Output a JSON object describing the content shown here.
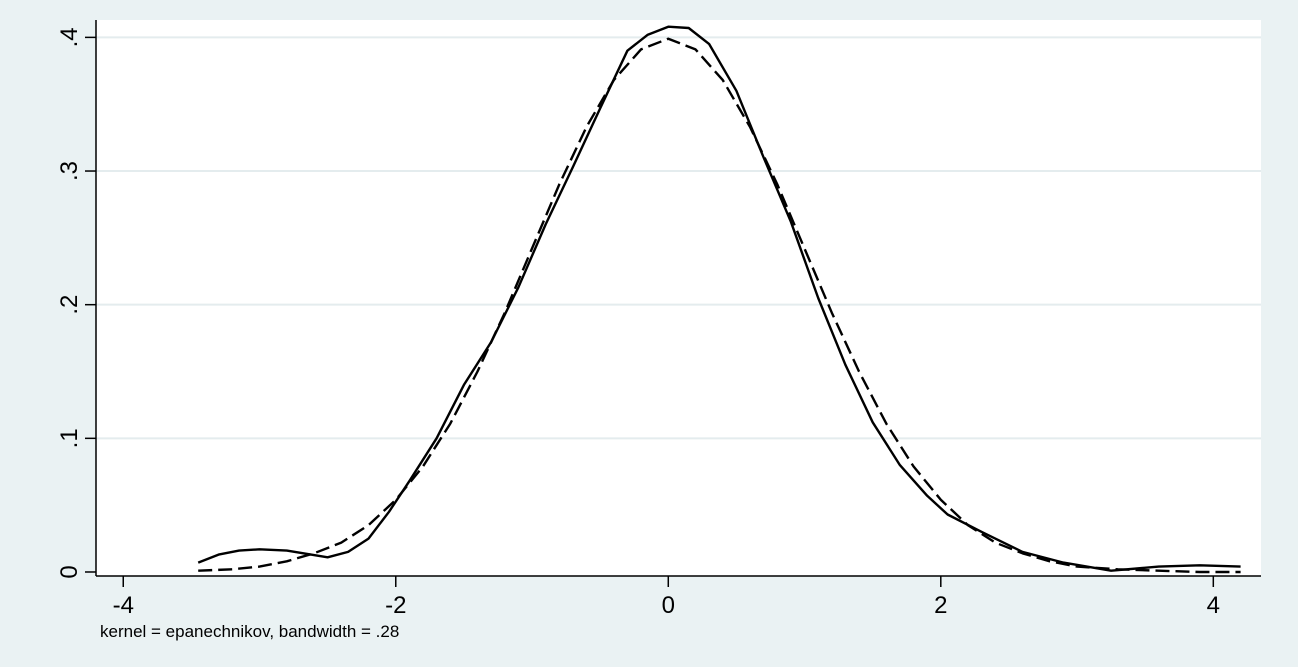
{
  "chart_data": {
    "type": "line",
    "title": "",
    "xlabel": "",
    "ylabel": "",
    "note": "kernel = epanechnikov, bandwidth = .28",
    "xlim": [
      -4.2,
      4.35
    ],
    "ylim": [
      -0.003,
      0.413
    ],
    "x_ticks": [
      {
        "value": -4,
        "label": "-4"
      },
      {
        "value": -2,
        "label": "-2"
      },
      {
        "value": 0,
        "label": "0"
      },
      {
        "value": 2,
        "label": "2"
      },
      {
        "value": 4,
        "label": "4"
      }
    ],
    "y_ticks": [
      {
        "value": 0,
        "label": "0"
      },
      {
        "value": 0.1,
        "label": ".1"
      },
      {
        "value": 0.2,
        "label": ".2"
      },
      {
        "value": 0.3,
        "label": ".3"
      },
      {
        "value": 0.4,
        "label": ".4"
      }
    ],
    "grid": "horizontal",
    "colors": {
      "background": "#eaf2f3",
      "plot_background": "#ffffff",
      "grid": "#e4ecee",
      "line": "#000000"
    },
    "series": [
      {
        "style": "solid",
        "x": [
          -3.45,
          -3.3,
          -3.15,
          -3.0,
          -2.8,
          -2.5,
          -2.35,
          -2.2,
          -2.05,
          -1.9,
          -1.7,
          -1.5,
          -1.3,
          -1.1,
          -0.9,
          -0.7,
          -0.5,
          -0.3,
          -0.15,
          0.0,
          0.15,
          0.3,
          0.5,
          0.7,
          0.9,
          1.1,
          1.3,
          1.5,
          1.7,
          1.9,
          2.05,
          2.3,
          2.6,
          2.9,
          3.25,
          3.6,
          3.9,
          4.2
        ],
        "y": [
          0.007,
          0.013,
          0.016,
          0.017,
          0.016,
          0.011,
          0.015,
          0.025,
          0.045,
          0.068,
          0.1,
          0.14,
          0.172,
          0.213,
          0.26,
          0.303,
          0.347,
          0.39,
          0.402,
          0.408,
          0.407,
          0.395,
          0.36,
          0.31,
          0.262,
          0.205,
          0.155,
          0.112,
          0.08,
          0.057,
          0.043,
          0.03,
          0.015,
          0.007,
          0.001,
          0.004,
          0.005,
          0.004
        ]
      },
      {
        "style": "dashed",
        "x": [
          -3.45,
          -3.2,
          -3.0,
          -2.8,
          -2.6,
          -2.4,
          -2.2,
          -2.0,
          -1.8,
          -1.6,
          -1.4,
          -1.2,
          -1.0,
          -0.8,
          -0.6,
          -0.4,
          -0.2,
          0.0,
          0.2,
          0.4,
          0.6,
          0.8,
          1.0,
          1.2,
          1.4,
          1.6,
          1.8,
          2.0,
          2.2,
          2.4,
          2.6,
          2.8,
          3.0,
          3.3,
          3.6,
          3.9,
          4.2
        ],
        "y": [
          0.001,
          0.002,
          0.004,
          0.008,
          0.014,
          0.022,
          0.035,
          0.054,
          0.079,
          0.111,
          0.15,
          0.194,
          0.242,
          0.29,
          0.333,
          0.368,
          0.391,
          0.399,
          0.391,
          0.368,
          0.333,
          0.29,
          0.242,
          0.194,
          0.15,
          0.111,
          0.079,
          0.054,
          0.035,
          0.022,
          0.014,
          0.008,
          0.004,
          0.002,
          0.001,
          0.0,
          0.0
        ]
      }
    ]
  }
}
